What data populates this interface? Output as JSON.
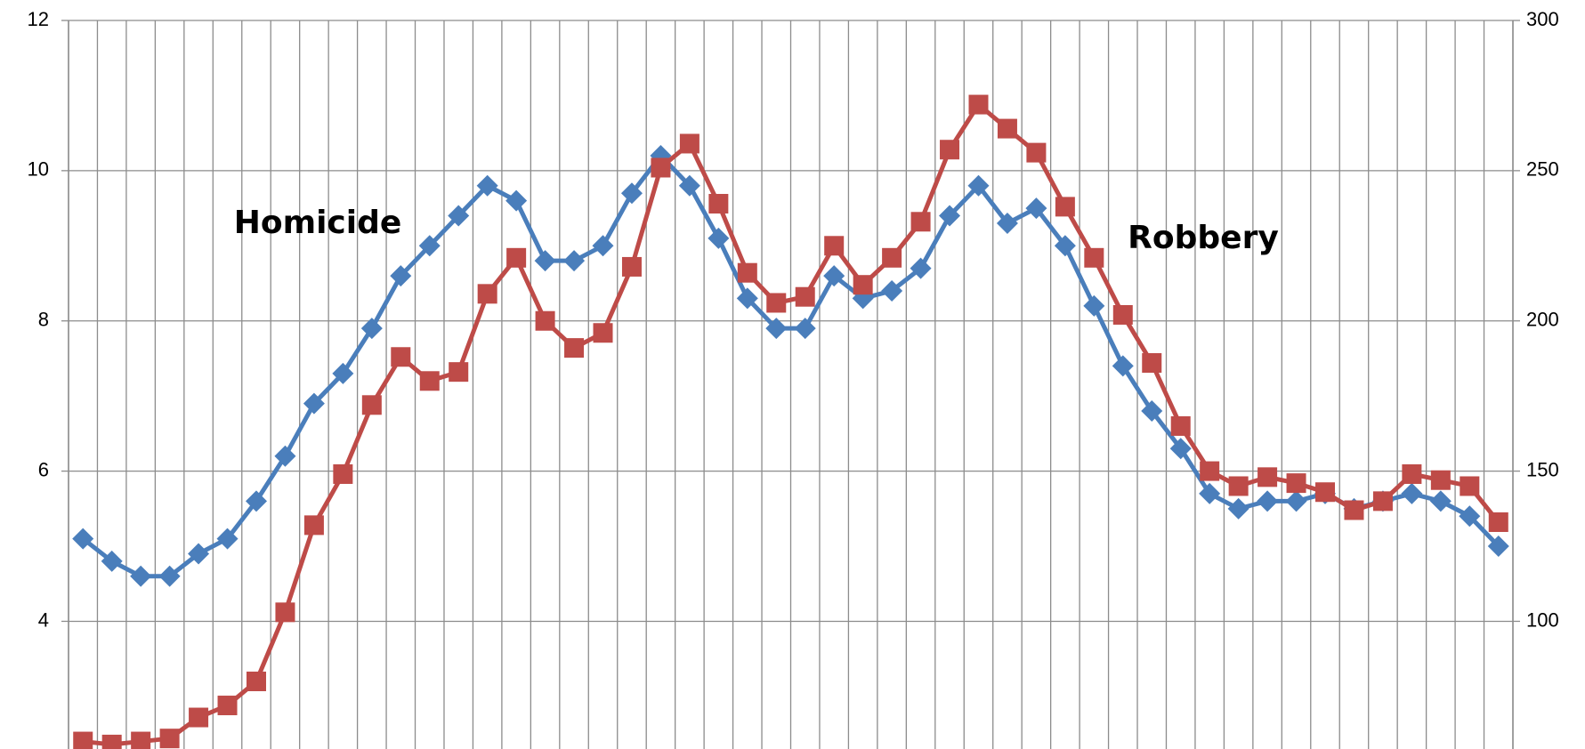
{
  "chart_data": {
    "type": "line",
    "categories": [
      null,
      null,
      null,
      null,
      null,
      null,
      null,
      null,
      null,
      null,
      null,
      null,
      null,
      null,
      null,
      null,
      null,
      null,
      null,
      null,
      null,
      null,
      null,
      null,
      null,
      null,
      null,
      null,
      null,
      null,
      null,
      null,
      null,
      null,
      null,
      null,
      null,
      null,
      null,
      null,
      null,
      null,
      null,
      null,
      null,
      null,
      null,
      null,
      null,
      null
    ],
    "series": [
      {
        "name": "Homicide",
        "color": "#4a7ebb",
        "marker": "diamond",
        "values": [
          5.1,
          4.8,
          4.6,
          4.6,
          4.9,
          5.1,
          5.6,
          6.2,
          6.9,
          7.3,
          7.9,
          8.6,
          9.0,
          9.4,
          9.8,
          9.6,
          8.8,
          8.8,
          9.0,
          9.7,
          10.2,
          9.8,
          9.1,
          8.3,
          7.9,
          7.9,
          8.6,
          8.3,
          8.4,
          8.7,
          9.4,
          9.8,
          9.3,
          9.5,
          9.0,
          8.2,
          7.4,
          6.8,
          6.3,
          5.7,
          5.5,
          5.6,
          5.6,
          5.7,
          5.5,
          5.6,
          5.7,
          5.6,
          5.4,
          5.0
        ]
      },
      {
        "name": "Robbery",
        "color": "#be4b48",
        "marker": "square",
        "axis": "y2",
        "values": [
          60,
          59,
          60,
          61,
          68,
          72,
          80,
          103,
          132,
          149,
          172,
          188,
          180,
          183,
          209,
          221,
          200,
          191,
          196,
          218,
          251,
          259,
          239,
          216,
          206,
          208,
          225,
          212,
          221,
          233,
          257,
          272,
          264,
          256,
          238,
          221,
          202,
          186,
          165,
          150,
          145,
          148,
          146,
          143,
          137,
          140,
          149,
          147,
          145,
          133
        ]
      }
    ],
    "ylim": [
      2.3,
      12
    ],
    "yticks": [
      4,
      6,
      8,
      10,
      12
    ],
    "y2lim": [
      57.5,
      300
    ],
    "y2ticks": [
      100,
      150,
      200,
      250,
      300
    ],
    "grid": true
  }
}
